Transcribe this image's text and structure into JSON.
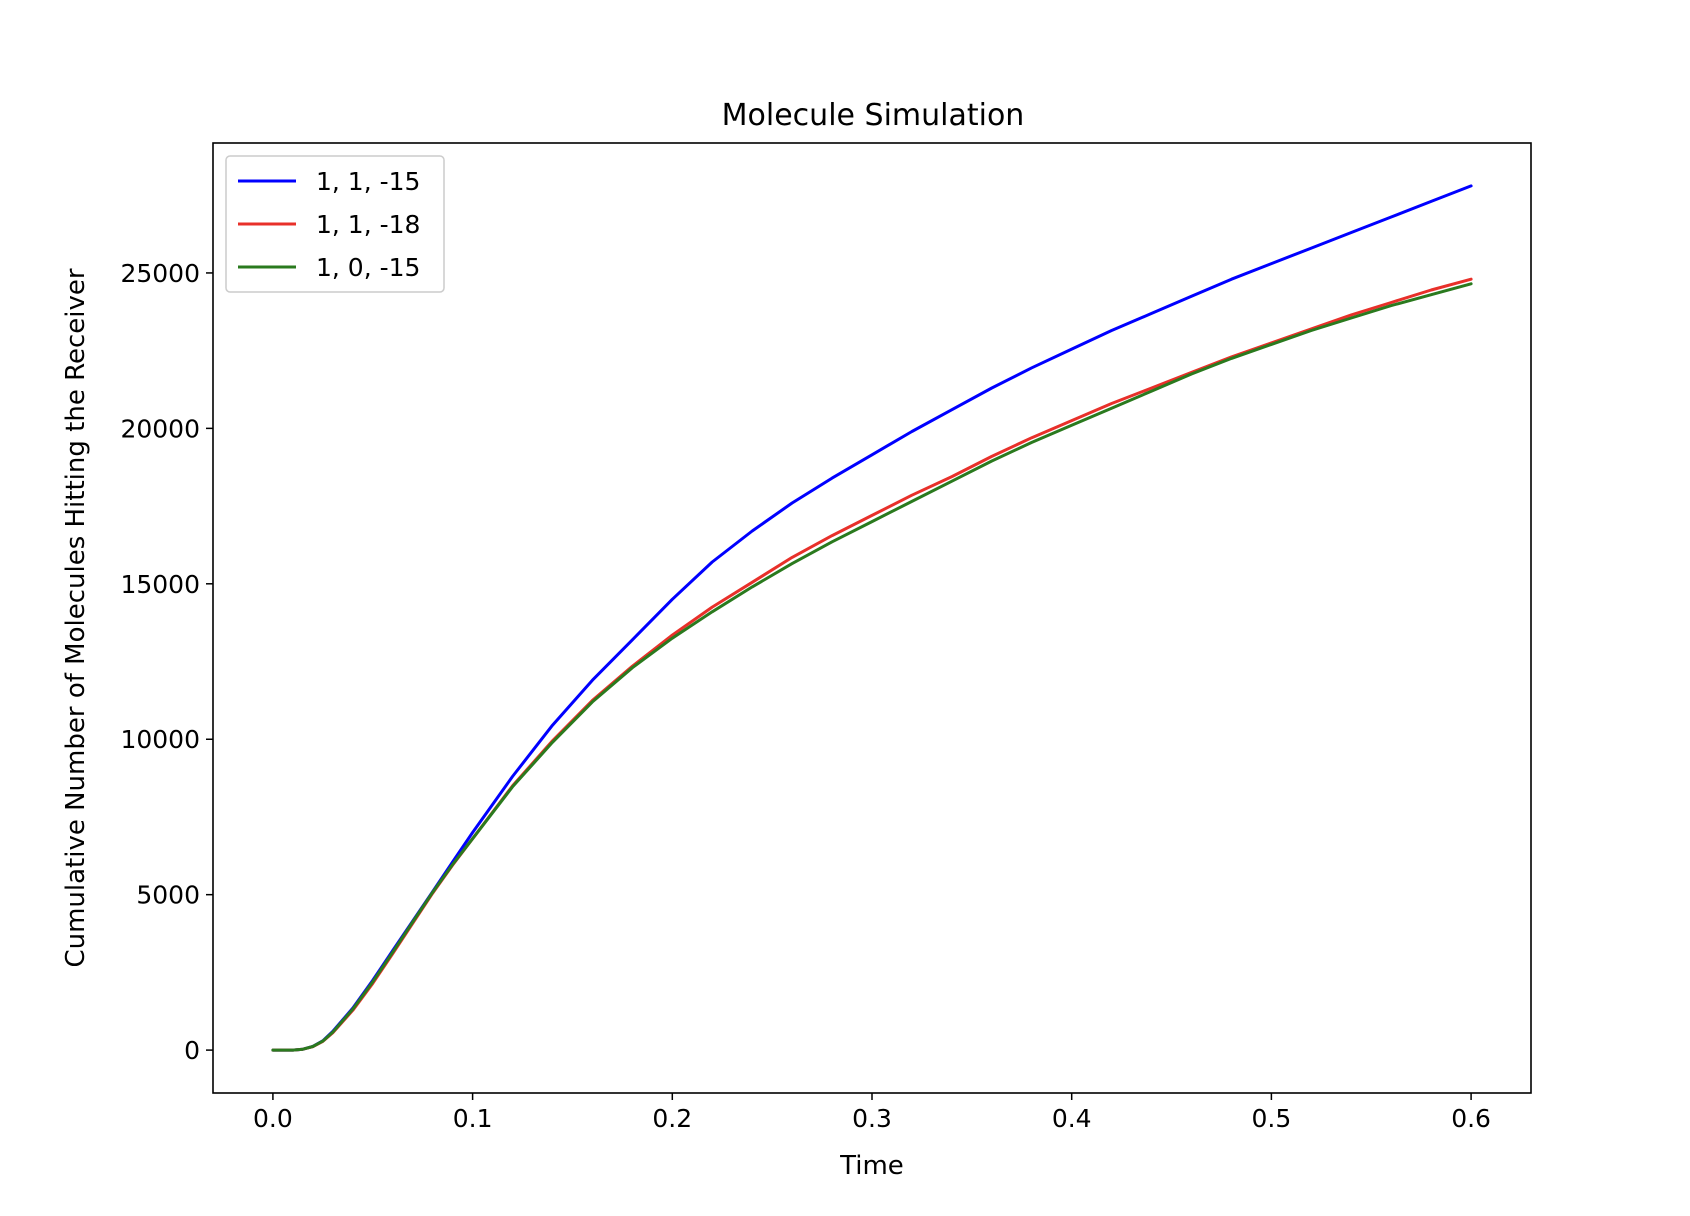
{
  "chart_data": {
    "type": "line",
    "title": "Molecule Simulation",
    "xlabel": "Time",
    "ylabel": "Cumulative Number of Molecules Hitting the Receiver",
    "xlim": [
      -0.03,
      0.63
    ],
    "ylim": [
      -1380,
      29180
    ],
    "xticks": [
      0.0,
      0.1,
      0.2,
      0.3,
      0.4,
      0.5,
      0.6
    ],
    "xtick_labels": [
      "0.0",
      "0.1",
      "0.2",
      "0.3",
      "0.4",
      "0.5",
      "0.6"
    ],
    "yticks": [
      0,
      5000,
      10000,
      15000,
      20000,
      25000
    ],
    "ytick_labels": [
      "0",
      "5000",
      "10000",
      "15000",
      "20000",
      "25000"
    ],
    "grid": false,
    "legend_position": "upper-left",
    "x": [
      0.0,
      0.01,
      0.015,
      0.02,
      0.025,
      0.03,
      0.04,
      0.05,
      0.06,
      0.07,
      0.08,
      0.09,
      0.1,
      0.12,
      0.14,
      0.16,
      0.18,
      0.2,
      0.22,
      0.24,
      0.26,
      0.28,
      0.3,
      0.32,
      0.34,
      0.36,
      0.38,
      0.4,
      0.42,
      0.44,
      0.46,
      0.48,
      0.5,
      0.52,
      0.54,
      0.56,
      0.58,
      0.6
    ],
    "series": [
      {
        "name": "1, 1, -15",
        "color": "#0000ff",
        "values": [
          0,
          0,
          30,
          120,
          300,
          600,
          1350,
          2250,
          3200,
          4150,
          5100,
          6050,
          7000,
          8800,
          10450,
          11900,
          13200,
          14500,
          15700,
          16700,
          17600,
          18400,
          19150,
          19900,
          20600,
          21300,
          21950,
          22550,
          23150,
          23700,
          24250,
          24800,
          25300,
          25800,
          26300,
          26800,
          27300,
          27800
        ]
      },
      {
        "name": "1, 1, -18",
        "color": "#e8302a",
        "values": [
          0,
          0,
          30,
          110,
          280,
          560,
          1280,
          2150,
          3100,
          4080,
          5050,
          5950,
          6800,
          8500,
          9950,
          11250,
          12350,
          13350,
          14250,
          15050,
          15850,
          16550,
          17200,
          17850,
          18450,
          19100,
          19700,
          20250,
          20800,
          21300,
          21800,
          22300,
          22750,
          23200,
          23650,
          24050,
          24450,
          24800
        ]
      },
      {
        "name": "1, 0, -15",
        "color": "#2a7a1e",
        "values": [
          0,
          0,
          30,
          115,
          290,
          580,
          1320,
          2200,
          3150,
          4120,
          5080,
          5970,
          6800,
          8470,
          9900,
          11200,
          12300,
          13250,
          14100,
          14900,
          15650,
          16350,
          17000,
          17650,
          18300,
          18950,
          19550,
          20100,
          20650,
          21200,
          21750,
          22250,
          22700,
          23150,
          23550,
          23950,
          24300,
          24650
        ]
      }
    ]
  }
}
